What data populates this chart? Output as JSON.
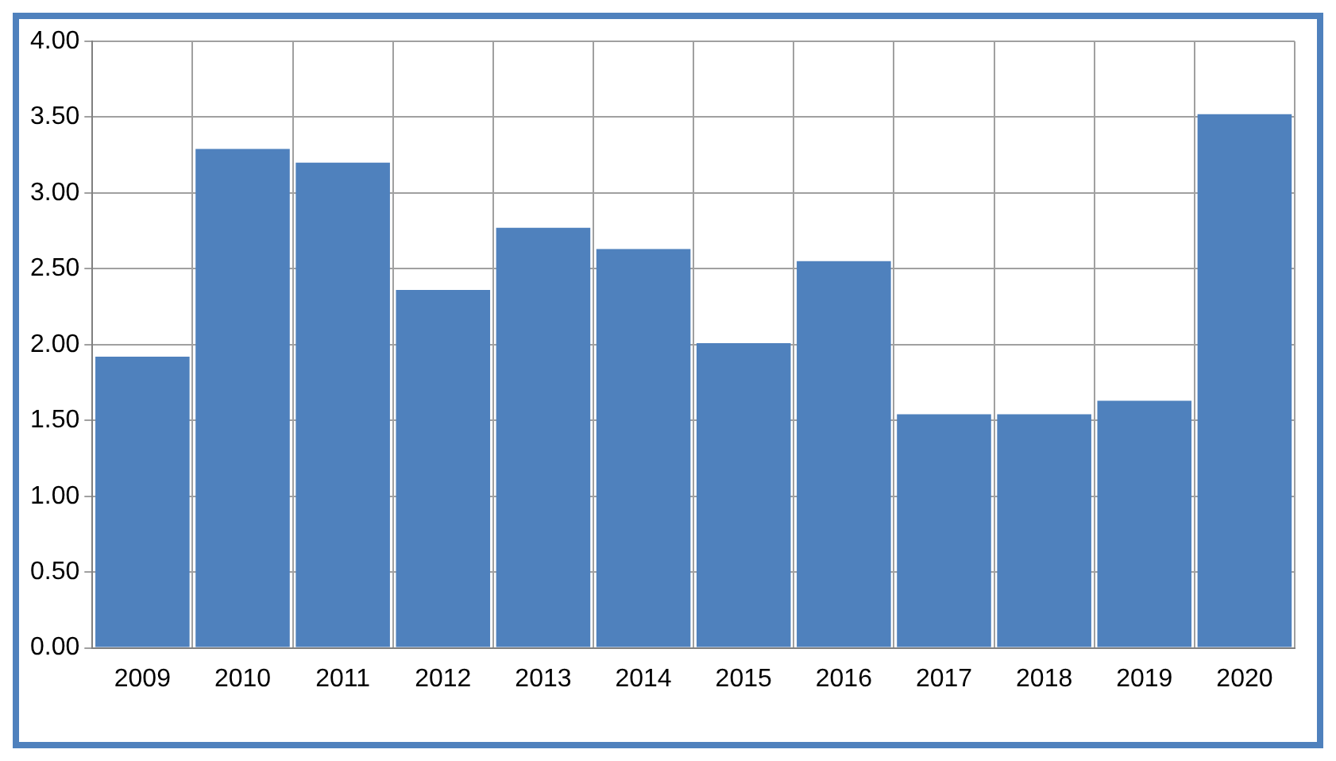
{
  "chart_data": {
    "type": "bar",
    "categories": [
      "2009",
      "2010",
      "2011",
      "2012",
      "2013",
      "2014",
      "2015",
      "2016",
      "2017",
      "2018",
      "2019",
      "2020"
    ],
    "values": [
      1.92,
      3.29,
      3.2,
      2.36,
      2.77,
      2.63,
      2.01,
      2.55,
      1.54,
      1.54,
      1.63,
      3.52
    ],
    "color": "#4f81bd",
    "ylim": [
      0,
      4
    ],
    "yticks": [
      {
        "value": 0,
        "label": "0.00"
      },
      {
        "value": 0.5,
        "label": "0.50"
      },
      {
        "value": 1,
        "label": "1.00"
      },
      {
        "value": 1.5,
        "label": "1.50"
      },
      {
        "value": 2,
        "label": "2.00"
      },
      {
        "value": 2.5,
        "label": "2.50"
      },
      {
        "value": 3,
        "label": "3.00"
      },
      {
        "value": 3.5,
        "label": "3.50"
      },
      {
        "value": 4,
        "label": "4.00"
      }
    ],
    "grid": true,
    "legend": false
  }
}
